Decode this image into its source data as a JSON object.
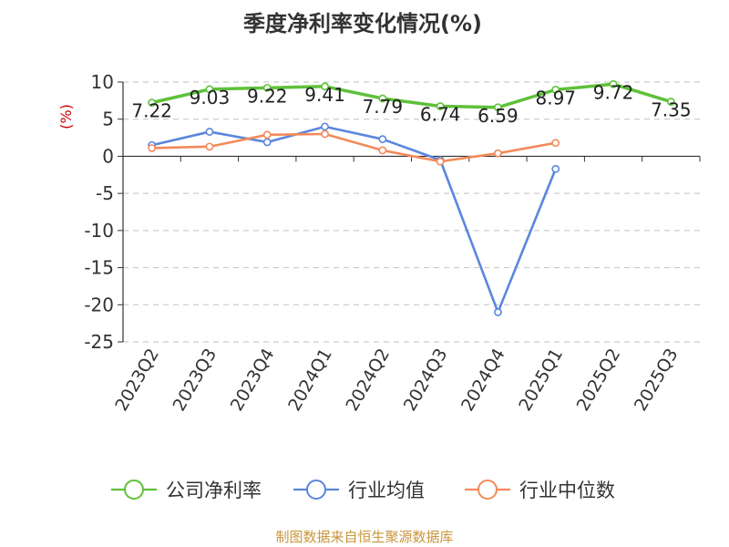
{
  "chart_data": {
    "type": "line",
    "title": "季度净利率变化情况(%)",
    "ylabel": "(%)",
    "xlabel": "",
    "categories": [
      "2023Q2",
      "2023Q3",
      "2023Q4",
      "2024Q1",
      "2024Q2",
      "2024Q3",
      "2024Q4",
      "2025Q1",
      "2025Q2",
      "2025Q3"
    ],
    "ylim": [
      -25,
      10
    ],
    "yticks": [
      10,
      5,
      0,
      -5,
      -10,
      -15,
      -20,
      -25
    ],
    "grid": true,
    "legend_position": "bottom",
    "series": [
      {
        "name": "公司净利率",
        "color": "#5ec13a",
        "values": [
          7.22,
          9.03,
          9.22,
          9.41,
          7.79,
          6.74,
          6.59,
          8.97,
          9.72,
          7.35
        ],
        "labels": [
          "7.22",
          "9.03",
          "9.22",
          "9.41",
          "7.79",
          "6.74",
          "6.59",
          "8.97",
          "9.72",
          "7.35"
        ]
      },
      {
        "name": "行业均值",
        "color": "#5b86dc",
        "values": [
          1.5,
          3.3,
          1.9,
          4.0,
          2.3,
          -0.5,
          -21.0,
          -1.7,
          null,
          null
        ]
      },
      {
        "name": "行业中位数",
        "color": "#f28a5a",
        "values": [
          1.1,
          1.3,
          2.9,
          3.0,
          0.8,
          -0.7,
          0.4,
          1.8,
          null,
          null
        ]
      }
    ],
    "source": "制图数据来自恒生聚源数据库",
    "colors": {
      "title": "#333333",
      "ylabel": "#cc0000",
      "grid": "#cccccc",
      "source": "#c8963c"
    }
  }
}
